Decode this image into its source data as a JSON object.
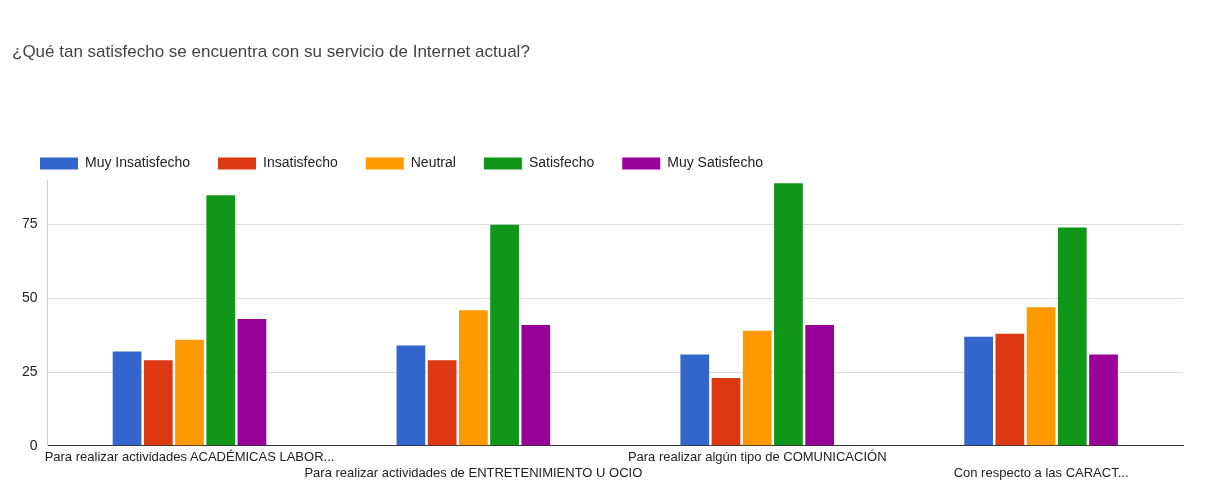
{
  "chart_data": {
    "type": "bar",
    "title": "¿Qué tan satisfecho se encuentra con su servicio de Internet actual?",
    "categories": [
      "Para realizar actividades ACADÉMICAS LABOR...",
      "Para realizar actividades de ENTRETENIMIENTO U OCIO",
      "Para realizar algún tipo de COMUNICACIÓN",
      "Con respecto a las CARACT..."
    ],
    "series": [
      {
        "name": "Muy Insatisfecho",
        "color": "#3366cc",
        "values": [
          32,
          34,
          31,
          37
        ]
      },
      {
        "name": "Insatisfecho",
        "color": "#dc3912",
        "values": [
          29,
          29,
          23,
          38
        ]
      },
      {
        "name": "Neutral",
        "color": "#ff9900",
        "values": [
          36,
          46,
          39,
          47
        ]
      },
      {
        "name": "Satisfecho",
        "color": "#109618",
        "values": [
          85,
          75,
          89,
          74
        ]
      },
      {
        "name": "Muy Satisfecho",
        "color": "#990099",
        "values": [
          43,
          41,
          41,
          31
        ]
      }
    ],
    "ylim": [
      0,
      90
    ],
    "yticks": [
      0,
      25,
      50,
      75
    ],
    "grid": "y",
    "legend": "top"
  }
}
